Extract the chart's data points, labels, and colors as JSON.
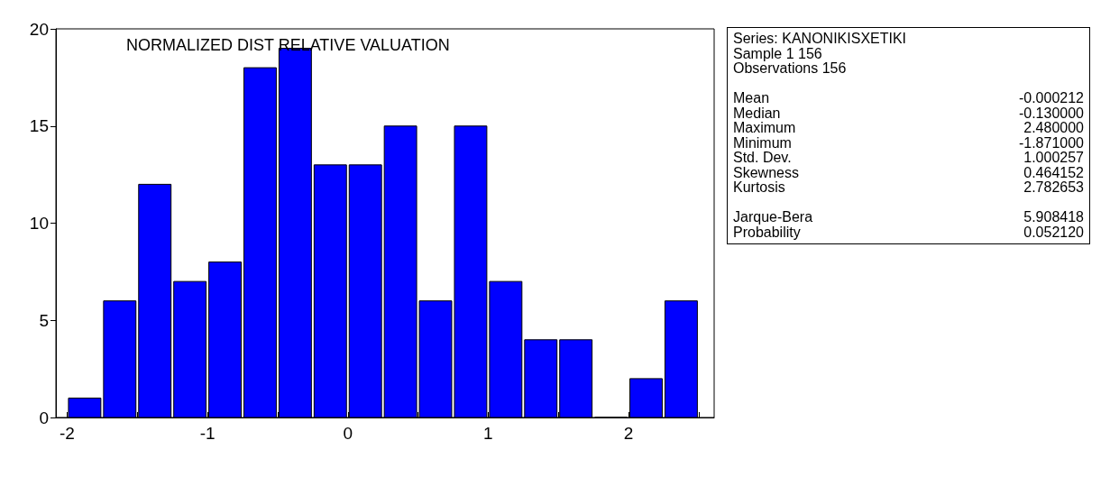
{
  "chart_data": {
    "type": "histogram",
    "title": "NORMALIZED DIST RELATIVE VALUATION",
    "bins": [
      -2,
      -1.75,
      -1.5,
      -1.25,
      -1,
      -0.75,
      -0.5,
      -0.25,
      0,
      0.25,
      0.5,
      0.75,
      1,
      1.25,
      1.5,
      1.75,
      2,
      2.25,
      2.5
    ],
    "values": [
      1,
      6,
      12,
      7,
      8,
      18,
      19,
      13,
      13,
      15,
      6,
      15,
      7,
      4,
      4,
      0,
      2,
      6
    ],
    "color": "#0000ff",
    "xlim": [
      -2.08,
      2.61
    ],
    "xticks": [
      -2,
      {
        "value": -1.5,
        "label": null
      },
      -1,
      {
        "value": -0.5,
        "label": null
      },
      0,
      {
        "value": 0.5,
        "label": null
      },
      1,
      {
        "value": 1.5,
        "label": null
      },
      2,
      {
        "value": 2.5,
        "label": null
      }
    ],
    "ylim": [
      0,
      20
    ],
    "yticks": [
      0,
      5,
      10,
      15,
      20
    ],
    "grid": false,
    "annotations": [
      "Series: KANONIKISXETIKI",
      "Sample 1 156",
      "Observations 156",
      "Mean",
      "-0.000212",
      "Median",
      "-0.130000",
      "Maximum",
      "2.480000",
      "Minimum",
      "-1.871000",
      "Std. Dev.",
      "1.000257",
      "Skewness",
      "0.464152",
      "Kurtosis",
      "2.782653",
      "Jarque-Bera",
      "5.908418",
      "Probability",
      "0.052120"
    ]
  }
}
